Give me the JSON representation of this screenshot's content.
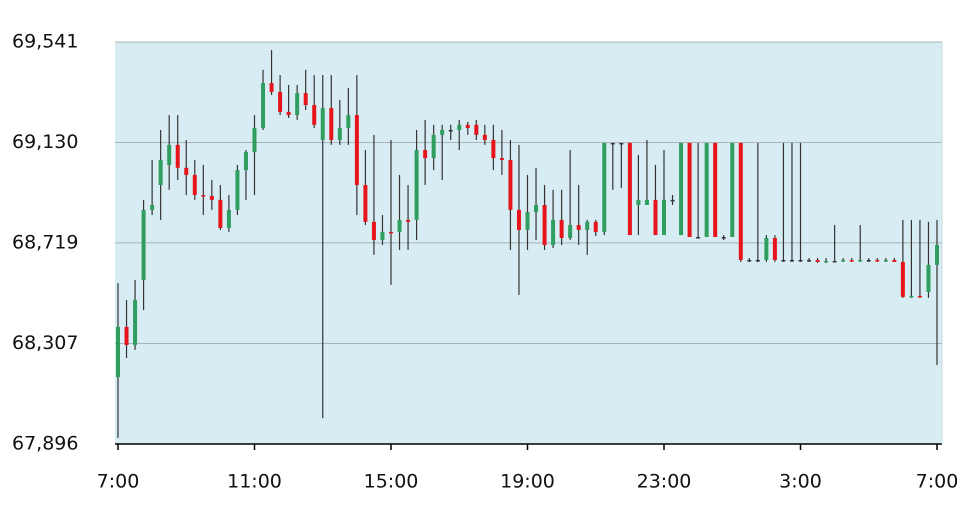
{
  "chart_data": {
    "type": "candlestick",
    "up_color": "#2f9e5f",
    "down_color": "#e8141b",
    "wick_color": "#333333",
    "background": "#d8edf3",
    "grid": true,
    "ylim": [
      67896,
      69541
    ],
    "yticks": [
      {
        "value": 67896,
        "label": "67,896"
      },
      {
        "value": 68307,
        "label": "68,307"
      },
      {
        "value": 68719,
        "label": "68,719"
      },
      {
        "value": 69130,
        "label": "69,130"
      },
      {
        "value": 69541,
        "label": "69,541"
      }
    ],
    "categories": [
      "7:00",
      null,
      null,
      null,
      null,
      null,
      null,
      null,
      null,
      null,
      null,
      null,
      null,
      null,
      null,
      null,
      "11:00",
      null,
      null,
      null,
      null,
      null,
      null,
      null,
      null,
      null,
      null,
      null,
      null,
      null,
      null,
      null,
      "15:00",
      null,
      null,
      null,
      null,
      null,
      null,
      null,
      null,
      null,
      null,
      null,
      null,
      null,
      null,
      null,
      "19:00",
      null,
      null,
      null,
      null,
      null,
      null,
      null,
      null,
      null,
      null,
      null,
      null,
      null,
      null,
      null,
      "23:00",
      null,
      null,
      null,
      null,
      null,
      null,
      null,
      null,
      null,
      null,
      null,
      null,
      null,
      null,
      null,
      "3:00",
      null,
      null,
      null,
      null,
      null,
      null,
      null,
      null,
      null,
      null,
      null,
      null,
      null,
      null,
      null,
      "7:00"
    ],
    "ohlc": [
      [
        68170,
        68555,
        67921,
        68375
      ],
      [
        68375,
        68485,
        68248,
        68301
      ],
      [
        68301,
        68567,
        68281,
        68485
      ],
      [
        68567,
        68895,
        68444,
        68854
      ],
      [
        68854,
        69058,
        68833,
        68874
      ],
      [
        68956,
        69181,
        68813,
        69058
      ],
      [
        69038,
        69242,
        68936,
        69120
      ],
      [
        69120,
        69242,
        68976,
        69026
      ],
      [
        69026,
        69140,
        68915,
        68997
      ],
      [
        68997,
        69058,
        68895,
        68915
      ],
      [
        68915,
        69038,
        68833,
        68911
      ],
      [
        68911,
        68976,
        68854,
        68895
      ],
      [
        68895,
        68956,
        68772,
        68780
      ],
      [
        68780,
        68915,
        68764,
        68854
      ],
      [
        68854,
        69038,
        68833,
        69017
      ],
      [
        69017,
        69099,
        68895,
        69091
      ],
      [
        69091,
        69242,
        68915,
        69189
      ],
      [
        69189,
        69427,
        69181,
        69373
      ],
      [
        69373,
        69508,
        69324,
        69337
      ],
      [
        69337,
        69406,
        69242,
        69255
      ],
      [
        69255,
        69365,
        69230,
        69242
      ],
      [
        69242,
        69365,
        69222,
        69332
      ],
      [
        69332,
        69427,
        69263,
        69283
      ],
      [
        69283,
        69406,
        69189,
        69202
      ],
      [
        69140,
        69406,
        68002,
        69271
      ],
      [
        69271,
        69406,
        69120,
        69140
      ],
      [
        69140,
        69304,
        69120,
        69189
      ],
      [
        69189,
        69353,
        69120,
        69242
      ],
      [
        69242,
        69406,
        68833,
        68956
      ],
      [
        68956,
        69099,
        68792,
        68805
      ],
      [
        68805,
        69161,
        68670,
        68731
      ],
      [
        68731,
        68833,
        68710,
        68764
      ],
      [
        68764,
        69140,
        68547,
        68760
      ],
      [
        68764,
        68997,
        68690,
        68813
      ],
      [
        68813,
        68956,
        68690,
        68805
      ],
      [
        68813,
        69181,
        68731,
        69099
      ],
      [
        69099,
        69222,
        68956,
        69066
      ],
      [
        69066,
        69202,
        69017,
        69161
      ],
      [
        69161,
        69202,
        68976,
        69181
      ],
      [
        69181,
        69202,
        69140,
        69181
      ],
      [
        69181,
        69222,
        69099,
        69202
      ],
      [
        69202,
        69214,
        69161,
        69189
      ],
      [
        69202,
        69222,
        69140,
        69161
      ],
      [
        69161,
        69202,
        69120,
        69140
      ],
      [
        69140,
        69202,
        69017,
        69066
      ],
      [
        69066,
        69181,
        68997,
        69058
      ],
      [
        69058,
        69140,
        68690,
        68854
      ],
      [
        68854,
        69120,
        68506,
        68772
      ],
      [
        68772,
        68997,
        68690,
        68845
      ],
      [
        68845,
        69026,
        68731,
        68874
      ],
      [
        68874,
        68956,
        68690,
        68710
      ],
      [
        68710,
        68936,
        68698,
        68813
      ],
      [
        68813,
        68936,
        68710,
        68739
      ],
      [
        68739,
        69099,
        68731,
        68792
      ],
      [
        68792,
        68956,
        68710,
        68772
      ],
      [
        68772,
        68813,
        68670,
        68805
      ],
      [
        68805,
        68813,
        68747,
        68764
      ],
      [
        68764,
        69128,
        68751,
        69128
      ],
      [
        69128,
        69128,
        68936,
        69128
      ],
      [
        69128,
        69128,
        68944,
        69128
      ],
      [
        69128,
        69128,
        68751,
        68751
      ],
      [
        68874,
        69079,
        68751,
        68895
      ],
      [
        68874,
        69140,
        68874,
        68895
      ],
      [
        68895,
        69038,
        68751,
        68751
      ],
      [
        68751,
        69099,
        68751,
        68895
      ],
      [
        68895,
        68915,
        68874,
        68895
      ],
      [
        68751,
        69128,
        68751,
        69128
      ],
      [
        69128,
        69128,
        68743,
        68743
      ],
      [
        68743,
        69128,
        68743,
        68743
      ],
      [
        68743,
        69128,
        68743,
        69128
      ],
      [
        69128,
        69128,
        68743,
        68743
      ],
      [
        68743,
        68751,
        68731,
        68743
      ],
      [
        68743,
        69128,
        68743,
        69128
      ],
      [
        69128,
        69128,
        68641,
        68649
      ],
      [
        68649,
        68657,
        68641,
        68649
      ],
      [
        68649,
        69128,
        68641,
        68649
      ],
      [
        68649,
        68751,
        68641,
        68739
      ],
      [
        68739,
        68751,
        68641,
        68649
      ],
      [
        68649,
        69128,
        68641,
        68649
      ],
      [
        68649,
        69128,
        68641,
        68649
      ],
      [
        68649,
        69128,
        68641,
        68649
      ],
      [
        68649,
        68657,
        68641,
        68649
      ],
      [
        68649,
        68657,
        68637,
        68641
      ],
      [
        68641,
        68657,
        68637,
        68645
      ],
      [
        68645,
        68792,
        68641,
        68645
      ],
      [
        68645,
        68657,
        68641,
        68649
      ],
      [
        68649,
        68657,
        68641,
        68645
      ],
      [
        68645,
        68792,
        68641,
        68649
      ],
      [
        68649,
        68657,
        68641,
        68649
      ],
      [
        68649,
        68657,
        68641,
        68645
      ],
      [
        68645,
        68657,
        68641,
        68649
      ],
      [
        68649,
        68657,
        68641,
        68641
      ],
      [
        68641,
        68813,
        68494,
        68498
      ],
      [
        68498,
        68813,
        68494,
        68502
      ],
      [
        68502,
        68813,
        68494,
        68498
      ],
      [
        68518,
        68805,
        68494,
        68629
      ],
      [
        68629,
        68813,
        68219,
        68710
      ]
    ]
  }
}
